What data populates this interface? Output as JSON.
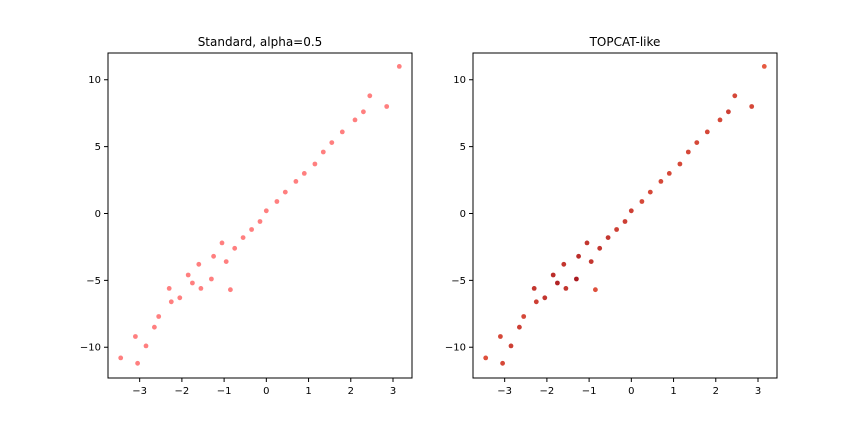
{
  "chart_data": [
    {
      "type": "scatter",
      "title": "Standard, alpha=0.5",
      "xlabel": "",
      "ylabel": "",
      "xlim": [
        -3.75,
        3.45
      ],
      "ylim": [
        -12.3,
        12.0
      ],
      "xticks": [
        -3,
        -2,
        -1,
        0,
        1,
        2,
        3
      ],
      "yticks": [
        -10,
        -5,
        0,
        5,
        10
      ],
      "xtick_labels": [
        "−3",
        "−2",
        "−1",
        "0",
        "1",
        "2",
        "3"
      ],
      "ytick_labels": [
        "−10",
        "−5",
        "0",
        "5",
        "10"
      ],
      "grid": false,
      "style": "uniform red points, alpha 0.5",
      "colors": {
        "point": "#ff0000"
      },
      "series": [
        {
          "values": [
            {
              "x": -3.45,
              "y": -10.8
            },
            {
              "x": -3.05,
              "y": -11.2
            },
            {
              "x": -2.85,
              "y": -9.9
            },
            {
              "x": -3.1,
              "y": -9.2
            },
            {
              "x": -2.65,
              "y": -8.5
            },
            {
              "x": -2.55,
              "y": -7.7
            },
            {
              "x": -2.25,
              "y": -6.6
            },
            {
              "x": -2.05,
              "y": -6.3
            },
            {
              "x": -2.3,
              "y": -5.6
            },
            {
              "x": -1.75,
              "y": -5.2
            },
            {
              "x": -1.55,
              "y": -5.6
            },
            {
              "x": -1.85,
              "y": -4.6
            },
            {
              "x": -1.3,
              "y": -4.9
            },
            {
              "x": -0.85,
              "y": -5.7
            },
            {
              "x": -1.6,
              "y": -3.8
            },
            {
              "x": -1.25,
              "y": -3.2
            },
            {
              "x": -0.95,
              "y": -3.6
            },
            {
              "x": -0.75,
              "y": -2.6
            },
            {
              "x": -0.55,
              "y": -1.8
            },
            {
              "x": -0.35,
              "y": -1.2
            },
            {
              "x": -1.05,
              "y": -2.2
            },
            {
              "x": -0.15,
              "y": -0.6
            },
            {
              "x": 0.0,
              "y": 0.2
            },
            {
              "x": 0.25,
              "y": 0.9
            },
            {
              "x": 0.45,
              "y": 1.6
            },
            {
              "x": 0.7,
              "y": 2.4
            },
            {
              "x": 0.9,
              "y": 3.0
            },
            {
              "x": 1.15,
              "y": 3.7
            },
            {
              "x": 1.35,
              "y": 4.6
            },
            {
              "x": 1.55,
              "y": 5.3
            },
            {
              "x": 1.8,
              "y": 6.1
            },
            {
              "x": 2.1,
              "y": 7.0
            },
            {
              "x": 2.3,
              "y": 7.6
            },
            {
              "x": 2.45,
              "y": 8.8
            },
            {
              "x": 2.85,
              "y": 8.0
            },
            {
              "x": 3.15,
              "y": 11.0
            }
          ]
        }
      ]
    },
    {
      "type": "scatter",
      "title": "TOPCAT-like",
      "xlabel": "",
      "ylabel": "",
      "xlim": [
        -3.75,
        3.45
      ],
      "ylim": [
        -12.3,
        12.0
      ],
      "xticks": [
        -3,
        -2,
        -1,
        0,
        1,
        2,
        3
      ],
      "yticks": [
        -10,
        -5,
        0,
        5,
        10
      ],
      "xtick_labels": [
        "−3",
        "−2",
        "−1",
        "0",
        "1",
        "2",
        "3"
      ],
      "ytick_labels": [
        "−10",
        "−5",
        "0",
        "5",
        "10"
      ],
      "grid": false,
      "style": "points colored by local density (orange-red to dark red)",
      "colors": {
        "low_density": "#ee5a3c",
        "high_density": "#a50f15"
      },
      "series": [
        {
          "values": [
            {
              "x": -3.45,
              "y": -10.8
            },
            {
              "x": -3.05,
              "y": -11.2
            },
            {
              "x": -2.85,
              "y": -9.9
            },
            {
              "x": -3.1,
              "y": -9.2
            },
            {
              "x": -2.65,
              "y": -8.5
            },
            {
              "x": -2.55,
              "y": -7.7
            },
            {
              "x": -2.25,
              "y": -6.6
            },
            {
              "x": -2.05,
              "y": -6.3
            },
            {
              "x": -2.3,
              "y": -5.6
            },
            {
              "x": -1.75,
              "y": -5.2
            },
            {
              "x": -1.55,
              "y": -5.6
            },
            {
              "x": -1.85,
              "y": -4.6
            },
            {
              "x": -1.3,
              "y": -4.9
            },
            {
              "x": -0.85,
              "y": -5.7
            },
            {
              "x": -1.6,
              "y": -3.8
            },
            {
              "x": -1.25,
              "y": -3.2
            },
            {
              "x": -0.95,
              "y": -3.6
            },
            {
              "x": -0.75,
              "y": -2.6
            },
            {
              "x": -0.55,
              "y": -1.8
            },
            {
              "x": -0.35,
              "y": -1.2
            },
            {
              "x": -1.05,
              "y": -2.2
            },
            {
              "x": -0.15,
              "y": -0.6
            },
            {
              "x": 0.0,
              "y": 0.2
            },
            {
              "x": 0.25,
              "y": 0.9
            },
            {
              "x": 0.45,
              "y": 1.6
            },
            {
              "x": 0.7,
              "y": 2.4
            },
            {
              "x": 0.9,
              "y": 3.0
            },
            {
              "x": 1.15,
              "y": 3.7
            },
            {
              "x": 1.35,
              "y": 4.6
            },
            {
              "x": 1.55,
              "y": 5.3
            },
            {
              "x": 1.8,
              "y": 6.1
            },
            {
              "x": 2.1,
              "y": 7.0
            },
            {
              "x": 2.3,
              "y": 7.6
            },
            {
              "x": 2.45,
              "y": 8.8
            },
            {
              "x": 2.85,
              "y": 8.0
            },
            {
              "x": 3.15,
              "y": 11.0
            }
          ]
        }
      ]
    }
  ]
}
